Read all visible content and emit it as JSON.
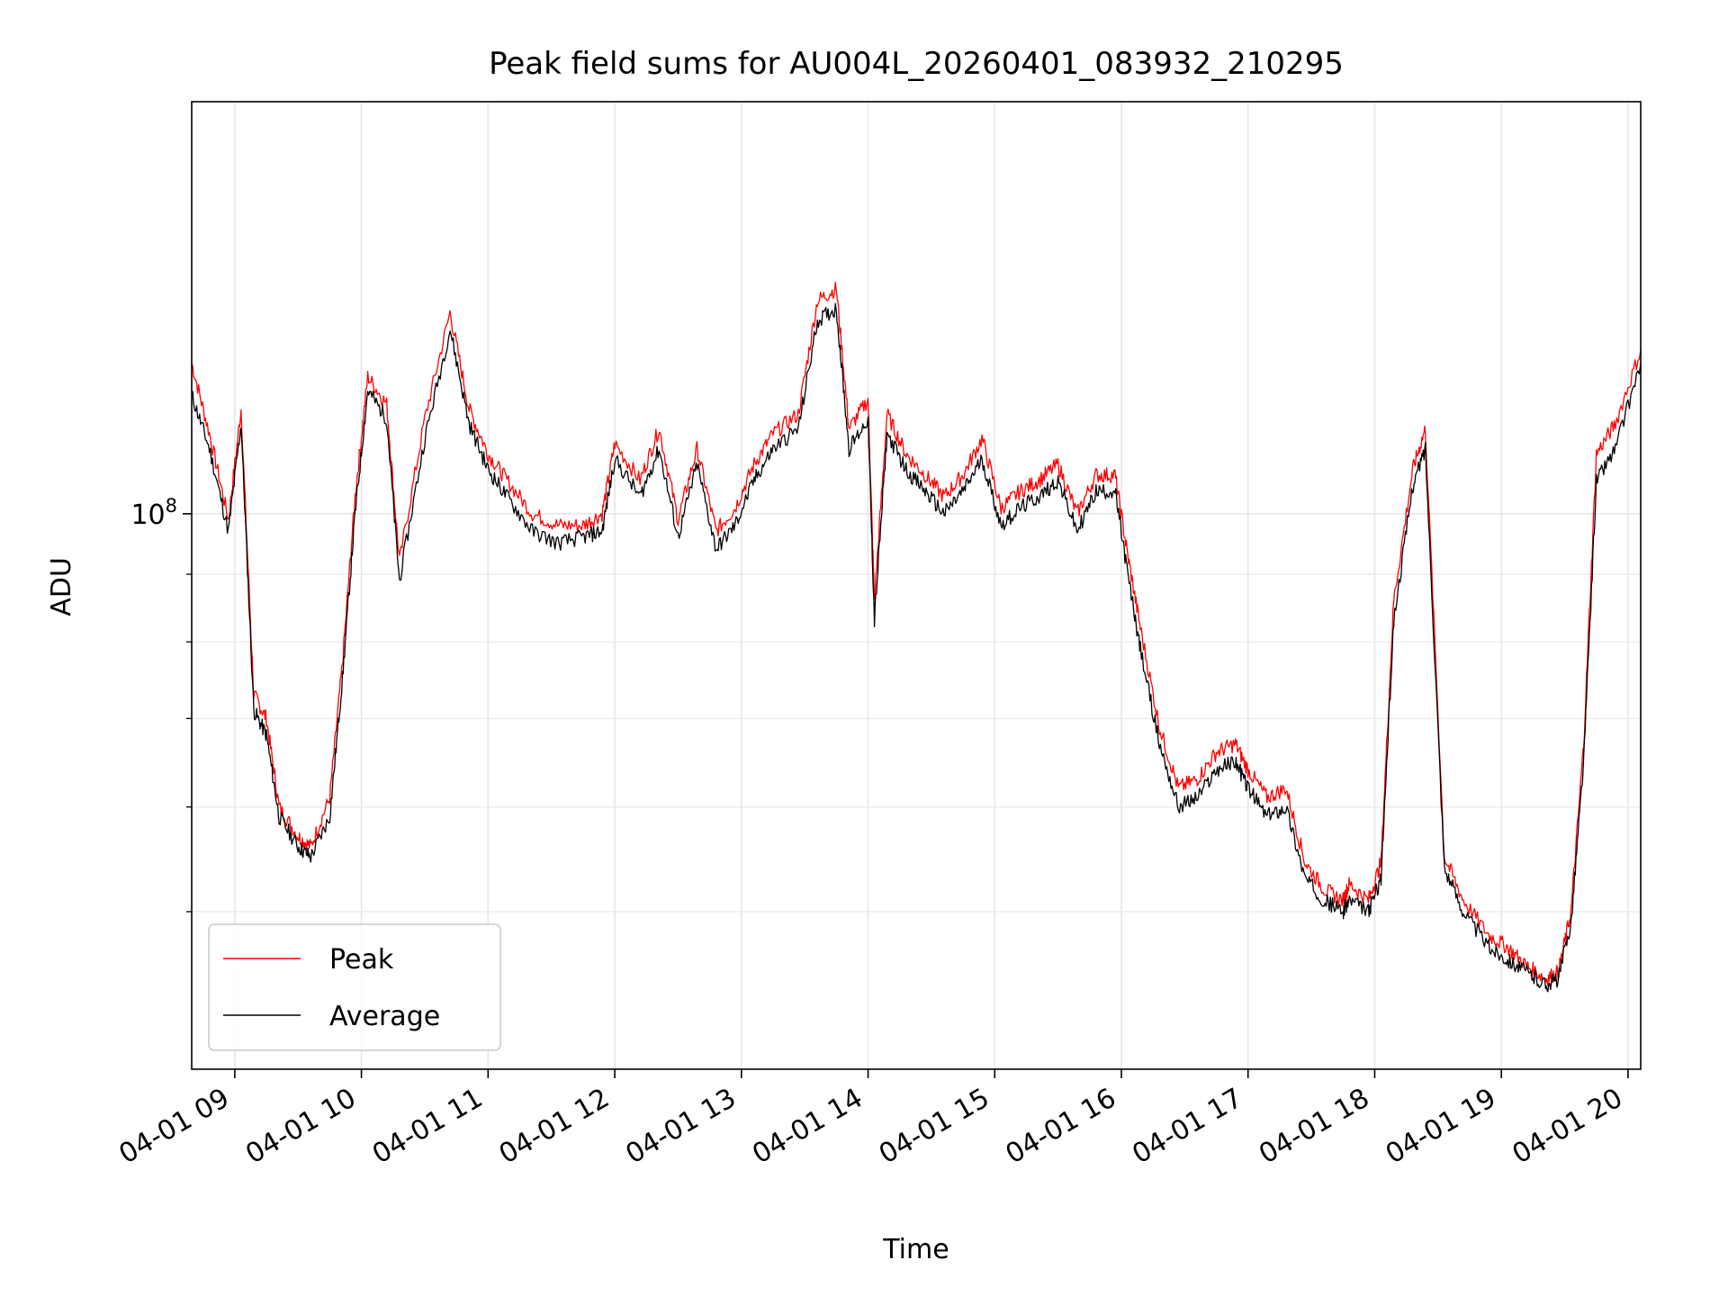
{
  "chart_data": {
    "type": "line",
    "title": "Peak field sums for AU004L_20260401_083932_210295",
    "xlabel": "Time",
    "ylabel": "ADU",
    "yscale": "log",
    "ylim": [
      38000000,
      205000000
    ],
    "xlim": [
      8.66,
      20.1
    ],
    "grid": true,
    "legend_position": "lower-left",
    "x_ticks": [
      9,
      10,
      11,
      12,
      13,
      14,
      15,
      16,
      17,
      18,
      19,
      20
    ],
    "x_tick_labels": [
      "04-01 09",
      "04-01 10",
      "04-01 11",
      "04-01 12",
      "04-01 13",
      "04-01 14",
      "04-01 15",
      "04-01 16",
      "04-01 17",
      "04-01 18",
      "04-01 19",
      "04-01 20"
    ],
    "y_major_ticks": [
      100000000
    ],
    "y_major_tick_base": "10",
    "y_major_tick_exp": "8",
    "y_minor_ticks": [
      50000000,
      60000000,
      70000000,
      80000000,
      90000000
    ],
    "series": [
      {
        "name": "Peak",
        "color": "#ff0000"
      },
      {
        "name": "Average",
        "color": "#000000"
      }
    ],
    "x": [
      8.66,
      8.8,
      8.95,
      9.05,
      9.15,
      9.25,
      9.35,
      9.5,
      9.6,
      9.75,
      9.85,
      9.95,
      10.05,
      10.2,
      10.3,
      10.5,
      10.7,
      10.85,
      11.0,
      11.15,
      11.35,
      11.55,
      11.75,
      11.9,
      12.0,
      12.2,
      12.35,
      12.5,
      12.65,
      12.8,
      12.95,
      13.1,
      13.25,
      13.45,
      13.6,
      13.75,
      13.85,
      14.0,
      14.05,
      14.15,
      14.3,
      14.45,
      14.6,
      14.75,
      14.9,
      15.05,
      15.2,
      15.35,
      15.5,
      15.65,
      15.8,
      15.95,
      16.05,
      16.15,
      16.3,
      16.45,
      16.6,
      16.75,
      16.9,
      17.0,
      17.15,
      17.3,
      17.45,
      17.6,
      17.75,
      17.8,
      17.95,
      18.05,
      18.15,
      18.3,
      18.4,
      18.55,
      18.7,
      18.9,
      19.05,
      19.2,
      19.35,
      19.45,
      19.55,
      19.65,
      19.75,
      19.9,
      20.1
    ],
    "average": [
      123000000,
      112000000,
      97000000,
      117000000,
      71000000,
      68000000,
      59000000,
      56000000,
      55000000,
      59000000,
      75000000,
      100000000,
      124000000,
      118000000,
      89000000,
      114000000,
      138000000,
      117000000,
      108000000,
      103000000,
      97000000,
      95000000,
      96000000,
      97000000,
      110000000,
      103000000,
      112000000,
      96000000,
      109000000,
      94000000,
      98000000,
      106000000,
      112000000,
      116000000,
      140000000,
      143000000,
      112000000,
      118000000,
      83000000,
      115000000,
      108000000,
      104000000,
      100000000,
      104000000,
      110000000,
      98000000,
      101000000,
      103000000,
      106000000,
      97000000,
      104000000,
      104000000,
      90000000,
      79000000,
      67000000,
      60000000,
      61000000,
      64000000,
      65000000,
      62000000,
      59000000,
      60000000,
      53000000,
      51000000,
      50000000,
      51000000,
      50000000,
      53000000,
      83000000,
      105000000,
      112000000,
      54000000,
      50000000,
      47000000,
      46000000,
      45000000,
      44000000,
      44500000,
      49000000,
      65000000,
      106000000,
      112000000,
      130000000
    ],
    "peak": [
      130000000,
      115000000,
      99000000,
      120000000,
      73000000,
      70000000,
      60000000,
      57000000,
      56000000,
      61000000,
      77000000,
      103000000,
      127000000,
      121000000,
      92000000,
      118000000,
      142000000,
      120000000,
      111000000,
      106000000,
      100000000,
      98000000,
      98000000,
      100000000,
      113000000,
      106000000,
      116000000,
      99000000,
      112000000,
      97000000,
      101000000,
      109000000,
      115000000,
      119000000,
      145000000,
      148000000,
      116000000,
      122000000,
      86000000,
      119000000,
      111000000,
      107000000,
      103000000,
      107000000,
      114000000,
      101000000,
      104000000,
      106000000,
      109000000,
      100000000,
      107000000,
      107000000,
      93000000,
      82000000,
      69000000,
      62000000,
      63000000,
      66000000,
      67000000,
      64000000,
      61000000,
      62000000,
      54500000,
      52000000,
      51000000,
      52500000,
      51000000,
      54500000,
      86000000,
      108000000,
      116000000,
      55000000,
      51000000,
      48000000,
      47000000,
      45500000,
      44500000,
      45000000,
      50000000,
      67000000,
      111000000,
      117000000,
      133000000
    ]
  }
}
